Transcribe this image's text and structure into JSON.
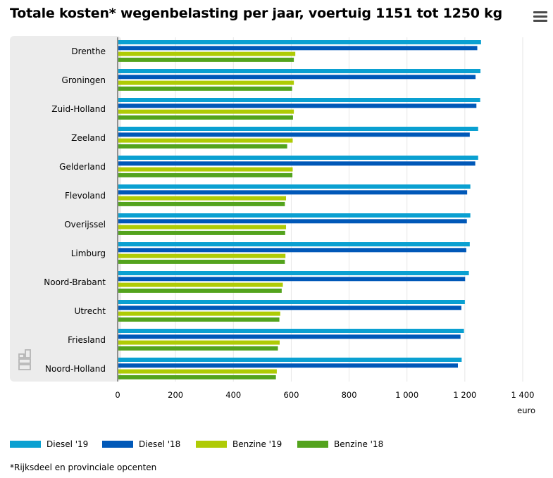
{
  "chart_data": {
    "type": "bar",
    "orientation": "horizontal",
    "title": "Totale kosten* wegenbelasting per jaar, voertuig 1151 tot 1250 kg",
    "xlabel": "euro",
    "xlim": [
      0,
      1400
    ],
    "xticks": [
      0,
      200,
      400,
      600,
      800,
      1000,
      1200,
      1400
    ],
    "xtick_labels": [
      "0",
      "200",
      "400",
      "600",
      "800",
      "1 000",
      "1 200",
      "1 400"
    ],
    "grid": true,
    "legend_position": "bottom-left",
    "categories": [
      "Drenthe",
      "Groningen",
      "Zuid-Holland",
      "Zeeland",
      "Gelderland",
      "Flevoland",
      "Overijssel",
      "Limburg",
      "Noord-Brabant",
      "Utrecht",
      "Friesland",
      "Noord-Holland"
    ],
    "series": [
      {
        "name": "Diesel '19",
        "color": "#0aa0d1",
        "values": [
          1256,
          1254,
          1253,
          1246,
          1246,
          1219,
          1219,
          1217,
          1214,
          1200,
          1197,
          1189
        ]
      },
      {
        "name": "Diesel '18",
        "color": "#0058b8",
        "values": [
          1243,
          1237,
          1240,
          1217,
          1236,
          1208,
          1207,
          1205,
          1201,
          1188,
          1185,
          1176
        ]
      },
      {
        "name": "Benzine '19",
        "color": "#afcb05",
        "values": [
          614,
          609,
          609,
          605,
          605,
          582,
          582,
          580,
          571,
          562,
          560,
          550
        ]
      },
      {
        "name": "Benzine '18",
        "color": "#53a31d",
        "values": [
          609,
          603,
          606,
          586,
          604,
          578,
          579,
          578,
          567,
          559,
          554,
          547
        ]
      }
    ]
  },
  "footnote": "*Rijksdeel en provinciale opcenten"
}
